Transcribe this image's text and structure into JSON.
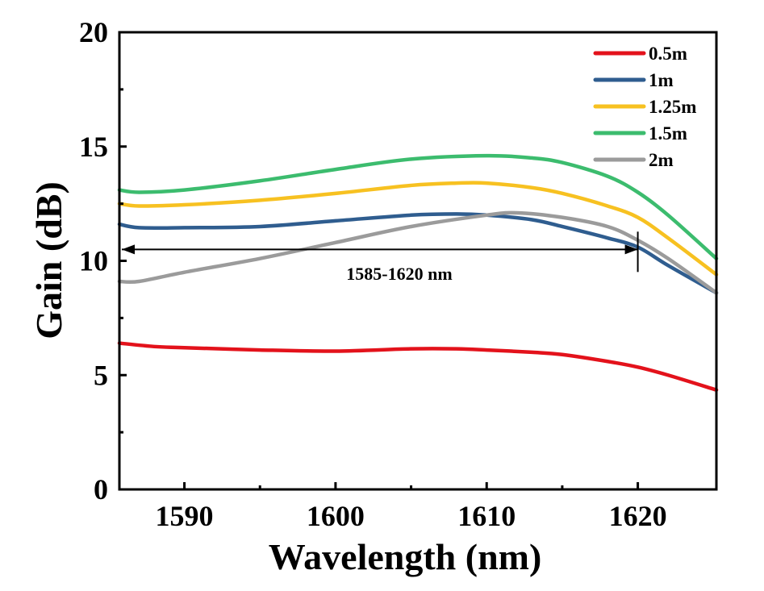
{
  "chart_data": {
    "type": "line",
    "title": "",
    "xlabel": "Wavelength (nm)",
    "ylabel": "Gain (dB)",
    "xlim": [
      1585.7,
      1625.2
    ],
    "ylim": [
      0,
      20
    ],
    "xticks": [
      1590,
      1600,
      1610,
      1620
    ],
    "yticks": [
      0,
      5,
      10,
      15,
      20
    ],
    "grid": false,
    "legend_position": "top-right",
    "annotation": {
      "text": "1585-1620 nm",
      "arrow_from": 1620,
      "arrow_to": 1585.7,
      "y": 10.5
    },
    "series": [
      {
        "name": "0.5m",
        "color": "#e3121b",
        "x": [
          1585.7,
          1588,
          1590,
          1595,
          1600,
          1605,
          1608,
          1610,
          1613,
          1615,
          1618,
          1620,
          1622,
          1625.2
        ],
        "y": [
          6.4,
          6.25,
          6.2,
          6.1,
          6.05,
          6.15,
          6.15,
          6.1,
          6.0,
          5.9,
          5.6,
          5.35,
          5.0,
          4.35
        ]
      },
      {
        "name": "1m",
        "color": "#2f5d8f",
        "x": [
          1585.7,
          1587,
          1590,
          1595,
          1600,
          1605,
          1608,
          1610,
          1613,
          1615,
          1618,
          1620,
          1622,
          1625.2
        ],
        "y": [
          11.6,
          11.45,
          11.45,
          11.5,
          11.75,
          12.0,
          12.05,
          12.0,
          11.8,
          11.5,
          11.0,
          10.6,
          9.8,
          8.6
        ]
      },
      {
        "name": "1.25m",
        "color": "#f7c121",
        "x": [
          1585.7,
          1587,
          1590,
          1595,
          1600,
          1605,
          1608,
          1610,
          1613,
          1615,
          1618,
          1620,
          1622,
          1625.2
        ],
        "y": [
          12.5,
          12.4,
          12.45,
          12.65,
          12.95,
          13.3,
          13.4,
          13.4,
          13.2,
          12.95,
          12.4,
          11.9,
          11.0,
          9.4
        ]
      },
      {
        "name": "1.5m",
        "color": "#3cbc6e",
        "x": [
          1585.7,
          1587,
          1590,
          1595,
          1600,
          1605,
          1610,
          1613,
          1615,
          1618,
          1620,
          1622,
          1625.2
        ],
        "y": [
          13.1,
          13.0,
          13.1,
          13.5,
          14.0,
          14.45,
          14.6,
          14.5,
          14.3,
          13.7,
          13.0,
          12.0,
          10.1
        ]
      },
      {
        "name": "2m",
        "color": "#9b9b9b",
        "x": [
          1585.7,
          1587,
          1590,
          1595,
          1600,
          1605,
          1610,
          1612,
          1615,
          1618,
          1620,
          1622,
          1625.2
        ],
        "y": [
          9.1,
          9.1,
          9.5,
          10.1,
          10.8,
          11.5,
          12.0,
          12.1,
          11.9,
          11.5,
          10.9,
          10.1,
          8.6
        ]
      }
    ]
  }
}
